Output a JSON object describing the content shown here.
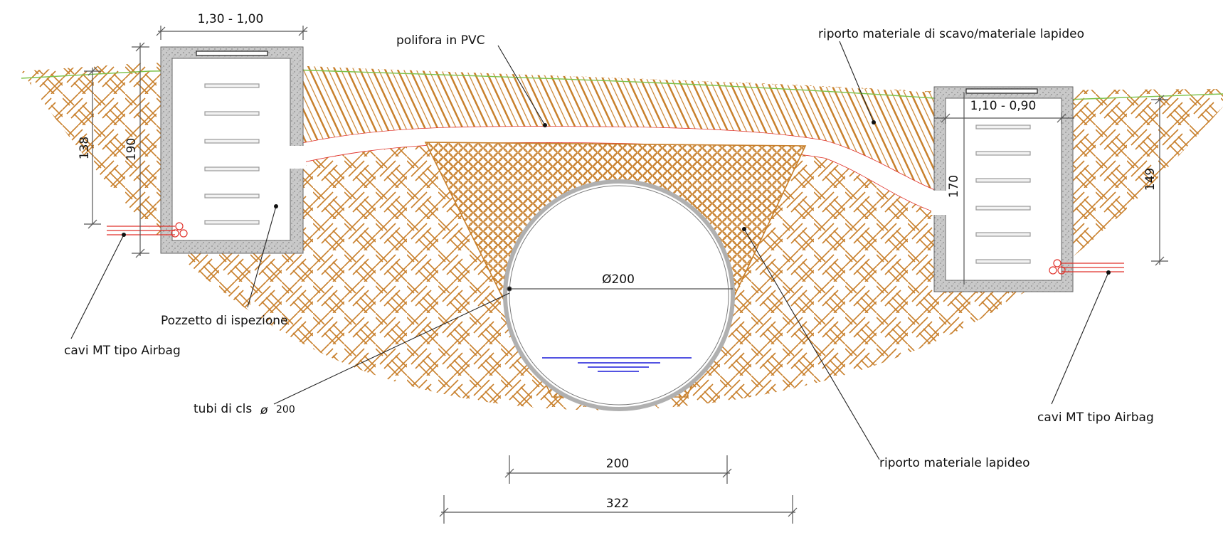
{
  "labels": {
    "polifora": "polifora in PVC",
    "riporto_scavo": "riporto materiale di scavo/materiale lapideo",
    "pozzetto": "Pozzetto di ispezione",
    "cavi_left": "cavi MT tipo Airbag",
    "cavi_right": "cavi MT tipo Airbag",
    "tubi": "tubi di cls",
    "tubi_size": "200",
    "lapideo": "riporto materiale lapideo"
  },
  "dimensions": {
    "left_width": "1,30 - 1,00",
    "right_width": "1,10 - 0,90",
    "left_depth_outer": "138",
    "left_depth_inner": "190",
    "right_depth_inner": "170",
    "right_depth_outer": "149",
    "pipe_diameter": "Ø200",
    "bottom_inner": "200",
    "bottom_outer": "322"
  },
  "colors": {
    "soil": "#c8802c",
    "ground_line": "#7dc24a",
    "pvc_line": "#e0312a",
    "water": "#1a1ad8",
    "concrete": "#bdbdbd"
  }
}
